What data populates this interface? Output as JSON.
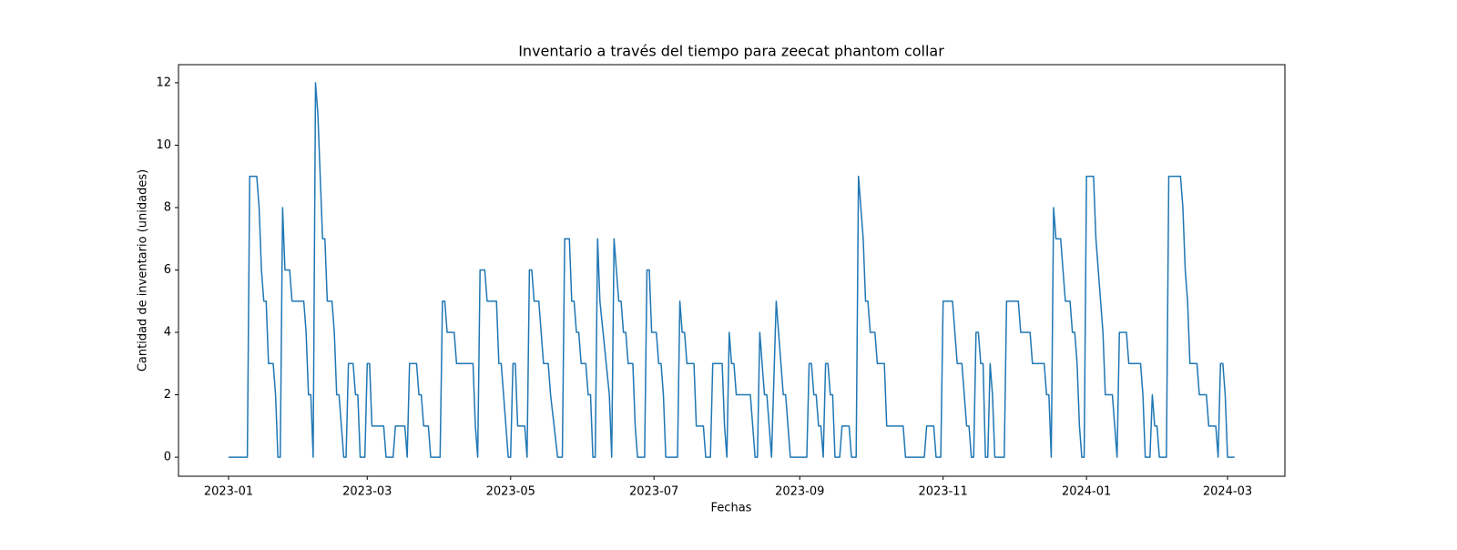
{
  "chart_data": {
    "type": "line",
    "title": "Inventario a través del tiempo para zeecat phantom collar",
    "x_label": "Fechas",
    "y_label": "Cantidad de inventario (unidades)",
    "xlim": [
      -21.3,
      449.4
    ],
    "ylim": [
      -0.61,
      12.58
    ],
    "xticks": [
      {
        "value": 0,
        "label": "2023-01"
      },
      {
        "value": 59,
        "label": "2023-03"
      },
      {
        "value": 120,
        "label": "2023-05"
      },
      {
        "value": 181,
        "label": "2023-07"
      },
      {
        "value": 243,
        "label": "2023-09"
      },
      {
        "value": 304,
        "label": "2023-11"
      },
      {
        "value": 365,
        "label": "2024-01"
      },
      {
        "value": 425,
        "label": "2024-03"
      }
    ],
    "yticks": [
      0,
      2,
      4,
      6,
      8,
      10,
      12
    ],
    "grid": false,
    "color": "#1f77b4",
    "x": [
      0,
      8,
      9,
      12,
      13,
      14,
      15,
      16,
      17,
      19,
      20,
      21,
      22,
      23,
      24,
      26,
      27,
      32,
      33,
      34,
      35,
      36,
      37,
      38,
      40,
      41,
      42,
      44,
      45,
      46,
      47,
      49,
      50,
      51,
      53,
      54,
      55,
      56,
      58,
      59,
      60,
      61,
      66,
      67,
      70,
      71,
      75,
      76,
      77,
      80,
      81,
      82,
      83,
      85,
      86,
      90,
      91,
      92,
      93,
      96,
      97,
      104,
      105,
      106,
      107,
      109,
      110,
      114,
      115,
      116,
      119,
      120,
      121,
      122,
      123,
      126,
      127,
      128,
      129,
      130,
      132,
      134,
      136,
      137,
      140,
      142,
      143,
      145,
      146,
      147,
      148,
      149,
      150,
      152,
      153,
      154,
      155,
      156,
      157,
      158,
      162,
      163,
      164,
      166,
      167,
      168,
      169,
      170,
      172,
      173,
      174,
      177,
      178,
      179,
      180,
      182,
      183,
      184,
      185,
      186,
      191,
      192,
      193,
      194,
      195,
      198,
      199,
      202,
      203,
      205,
      206,
      210,
      211,
      212,
      213,
      214,
      215,
      216,
      222,
      224,
      225,
      226,
      227,
      228,
      229,
      230,
      231,
      233,
      234,
      236,
      237,
      238,
      239,
      246,
      247,
      248,
      249,
      250,
      251,
      252,
      253,
      254,
      255,
      256,
      257,
      258,
      260,
      261,
      264,
      265,
      267,
      268,
      270,
      271,
      272,
      273,
      275,
      276,
      279,
      280,
      287,
      288,
      296,
      297,
      300,
      301,
      303,
      304,
      308,
      310,
      312,
      314,
      315,
      316,
      317,
      318,
      319,
      320,
      321,
      322,
      323,
      324,
      325,
      326,
      330,
      331,
      336,
      337,
      341,
      342,
      347,
      348,
      349,
      350,
      351,
      352,
      354,
      356,
      358,
      359,
      360,
      361,
      362,
      363,
      364,
      365,
      368,
      369,
      372,
      373,
      376,
      378,
      379,
      382,
      383,
      388,
      389,
      390,
      392,
      393,
      394,
      395,
      396,
      399,
      400,
      405,
      406,
      407,
      408,
      409,
      412,
      413,
      416,
      417,
      420,
      421,
      422,
      423,
      424,
      425,
      428
    ],
    "values": [
      0,
      0,
      9,
      9,
      8,
      6,
      5,
      5,
      3,
      3,
      2,
      0,
      0,
      8,
      6,
      6,
      5,
      5,
      4,
      2,
      2,
      0,
      12,
      11,
      7,
      7,
      5,
      5,
      4,
      2,
      2,
      0,
      0,
      3,
      3,
      2,
      2,
      0,
      0,
      3,
      3,
      1,
      1,
      0,
      0,
      1,
      1,
      0,
      3,
      3,
      2,
      2,
      1,
      1,
      0,
      0,
      5,
      5,
      4,
      4,
      3,
      3,
      1,
      0,
      6,
      6,
      5,
      5,
      3,
      3,
      0,
      0,
      3,
      3,
      1,
      1,
      0,
      6,
      6,
      5,
      5,
      3,
      3,
      2,
      0,
      0,
      7,
      7,
      5,
      5,
      4,
      4,
      3,
      3,
      2,
      2,
      0,
      0,
      7,
      5,
      2,
      0,
      7,
      5,
      5,
      4,
      4,
      3,
      3,
      1,
      0,
      0,
      6,
      6,
      4,
      4,
      3,
      3,
      2,
      0,
      0,
      5,
      4,
      4,
      3,
      3,
      1,
      1,
      0,
      0,
      3,
      3,
      1,
      0,
      4,
      3,
      3,
      2,
      2,
      0,
      0,
      4,
      3,
      2,
      2,
      1,
      0,
      5,
      4,
      2,
      2,
      1,
      0,
      0,
      3,
      3,
      2,
      2,
      1,
      1,
      0,
      3,
      3,
      2,
      2,
      0,
      0,
      1,
      1,
      0,
      0,
      9,
      7,
      5,
      5,
      4,
      4,
      3,
      3,
      1,
      1,
      0,
      0,
      1,
      1,
      0,
      0,
      5,
      5,
      3,
      3,
      1,
      1,
      0,
      0,
      4,
      4,
      3,
      3,
      0,
      0,
      3,
      2,
      0,
      0,
      5,
      5,
      4,
      4,
      3,
      3,
      2,
      2,
      0,
      8,
      7,
      7,
      5,
      5,
      4,
      4,
      3,
      1,
      0,
      0,
      9,
      9,
      7,
      4,
      2,
      2,
      0,
      4,
      4,
      3,
      3,
      2,
      0,
      0,
      2,
      1,
      1,
      0,
      0,
      9,
      9,
      8,
      6,
      5,
      3,
      3,
      2,
      2,
      1,
      1,
      0,
      3,
      3,
      2,
      0,
      0
    ]
  }
}
